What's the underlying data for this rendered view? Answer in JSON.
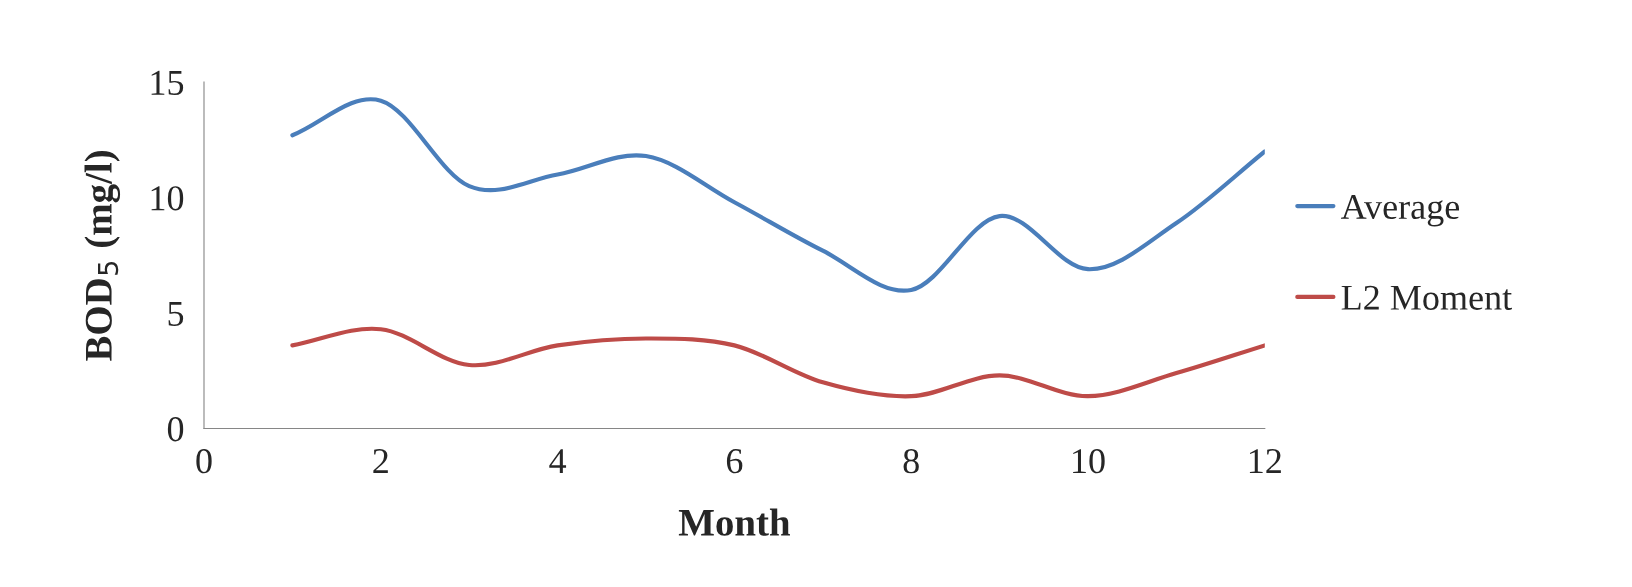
{
  "chart_data": {
    "type": "line",
    "xlabel": "Month",
    "ylabel": "BOD$_{5}$ (mg/l)",
    "x": [
      1,
      2,
      3,
      4,
      5,
      6,
      7,
      8,
      9,
      10,
      11,
      12
    ],
    "series": [
      {
        "name": "Average",
        "color": "#4a7ebb",
        "values": [
          12.7,
          14.2,
          10.5,
          11.0,
          11.8,
          9.8,
          7.7,
          6.0,
          9.2,
          6.9,
          8.9,
          12.0
        ]
      },
      {
        "name": "L2 Moment",
        "color": "#be4b48",
        "values": [
          3.6,
          4.3,
          2.75,
          3.6,
          3.9,
          3.6,
          2.0,
          1.4,
          2.3,
          1.4,
          2.4,
          3.6
        ]
      }
    ],
    "xlim": [
      0,
      12
    ],
    "xticks": [
      0,
      2,
      4,
      6,
      8,
      10,
      12
    ],
    "ylim": [
      0,
      15
    ],
    "yticks": [
      0,
      5,
      10,
      15
    ],
    "grid": false,
    "legend": "right",
    "marker": "none",
    "line_style": "solid"
  }
}
